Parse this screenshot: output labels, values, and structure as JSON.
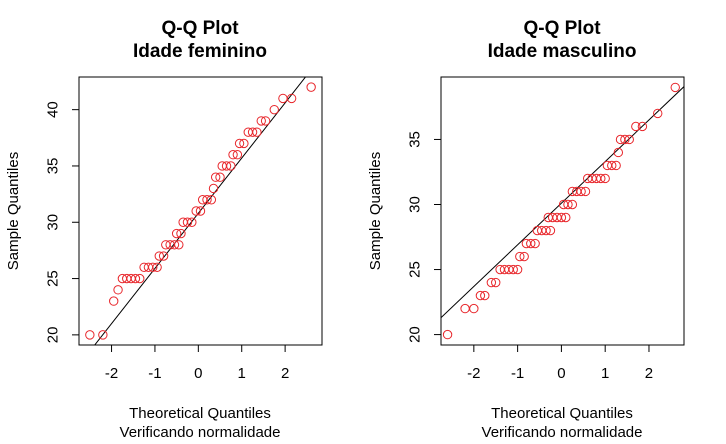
{
  "chart_data": [
    {
      "type": "scatter",
      "title": "Q-Q Plot",
      "subtitle": "Idade feminino",
      "xlabel": "Theoretical Quantiles",
      "xlabel2": "Verificando normalidade",
      "ylabel": "Sample Quantiles",
      "xlim": [
        -2.75,
        2.85
      ],
      "ylim": [
        19.1,
        42.9
      ],
      "xticks": [
        -2,
        -1,
        0,
        1,
        2
      ],
      "yticks": [
        20,
        25,
        30,
        35,
        40
      ],
      "xtick_labels": [
        "-2",
        "-1",
        "0",
        "1",
        "2"
      ],
      "ytick_labels": [
        "20",
        "25",
        "30",
        "35",
        "40"
      ],
      "point_color": "#e8262b",
      "line_color": "#000000",
      "reference_line": {
        "intercept": 30.8,
        "slope": 4.9
      },
      "series": [
        {
          "points": [
            [
              -2.5,
              20
            ],
            [
              -2.2,
              20
            ],
            [
              -1.95,
              23
            ],
            [
              -1.85,
              24
            ],
            [
              -1.75,
              25
            ],
            [
              -1.65,
              25
            ],
            [
              -1.55,
              25
            ],
            [
              -1.45,
              25
            ],
            [
              -1.35,
              25
            ],
            [
              -1.25,
              26
            ],
            [
              -1.15,
              26
            ],
            [
              -1.05,
              26
            ],
            [
              -0.95,
              26
            ],
            [
              -0.9,
              27
            ],
            [
              -0.8,
              27
            ],
            [
              -0.75,
              28
            ],
            [
              -0.65,
              28
            ],
            [
              -0.55,
              28
            ],
            [
              -0.45,
              28
            ],
            [
              -0.5,
              29
            ],
            [
              -0.4,
              29
            ],
            [
              -0.35,
              30
            ],
            [
              -0.25,
              30
            ],
            [
              -0.15,
              30
            ],
            [
              -0.05,
              31
            ],
            [
              0.05,
              31
            ],
            [
              0.1,
              32
            ],
            [
              0.2,
              32
            ],
            [
              0.3,
              32
            ],
            [
              0.35,
              33
            ],
            [
              0.4,
              34
            ],
            [
              0.5,
              34
            ],
            [
              0.55,
              35
            ],
            [
              0.65,
              35
            ],
            [
              0.75,
              35
            ],
            [
              0.8,
              36
            ],
            [
              0.9,
              36
            ],
            [
              0.95,
              37
            ],
            [
              1.05,
              37
            ],
            [
              1.15,
              38
            ],
            [
              1.25,
              38
            ],
            [
              1.35,
              38
            ],
            [
              1.45,
              39
            ],
            [
              1.55,
              39
            ],
            [
              1.75,
              40
            ],
            [
              1.95,
              41
            ],
            [
              2.15,
              41
            ],
            [
              2.6,
              42
            ]
          ]
        }
      ]
    },
    {
      "type": "scatter",
      "title": "Q-Q Plot",
      "subtitle": "Idade masculino",
      "xlabel": "Theoretical Quantiles",
      "xlabel2": "Verificando normalidade",
      "ylabel": "Sample Quantiles",
      "xlim": [
        -2.75,
        2.8
      ],
      "ylim": [
        19.2,
        39.8
      ],
      "xticks": [
        -2,
        -1,
        0,
        1,
        2
      ],
      "yticks": [
        20,
        25,
        30,
        35
      ],
      "xtick_labels": [
        "-2",
        "-1",
        "0",
        "1",
        "2"
      ],
      "ytick_labels": [
        "20",
        "25",
        "30",
        "35"
      ],
      "point_color": "#e8262b",
      "line_color": "#000000",
      "reference_line": {
        "intercept": 30.1,
        "slope": 3.2
      },
      "series": [
        {
          "points": [
            [
              -2.6,
              20
            ],
            [
              -2.2,
              22
            ],
            [
              -2.0,
              22
            ],
            [
              -1.85,
              23
            ],
            [
              -1.75,
              23
            ],
            [
              -1.6,
              24
            ],
            [
              -1.5,
              24
            ],
            [
              -1.4,
              25
            ],
            [
              -1.3,
              25
            ],
            [
              -1.2,
              25
            ],
            [
              -1.1,
              25
            ],
            [
              -1.0,
              25
            ],
            [
              -0.95,
              26
            ],
            [
              -0.85,
              26
            ],
            [
              -0.8,
              27
            ],
            [
              -0.7,
              27
            ],
            [
              -0.6,
              27
            ],
            [
              -0.55,
              28
            ],
            [
              -0.45,
              28
            ],
            [
              -0.35,
              28
            ],
            [
              -0.25,
              28
            ],
            [
              -0.3,
              29
            ],
            [
              -0.2,
              29
            ],
            [
              -0.1,
              29
            ],
            [
              0.0,
              29
            ],
            [
              0.1,
              29
            ],
            [
              0.05,
              30
            ],
            [
              0.15,
              30
            ],
            [
              0.25,
              30
            ],
            [
              0.25,
              31
            ],
            [
              0.35,
              31
            ],
            [
              0.45,
              31
            ],
            [
              0.55,
              31
            ],
            [
              0.6,
              32
            ],
            [
              0.7,
              32
            ],
            [
              0.8,
              32
            ],
            [
              0.9,
              32
            ],
            [
              1.0,
              32
            ],
            [
              1.05,
              33
            ],
            [
              1.15,
              33
            ],
            [
              1.25,
              33
            ],
            [
              1.3,
              34
            ],
            [
              1.35,
              35
            ],
            [
              1.45,
              35
            ],
            [
              1.55,
              35
            ],
            [
              1.7,
              36
            ],
            [
              1.85,
              36
            ],
            [
              2.2,
              37
            ],
            [
              2.6,
              39
            ]
          ]
        }
      ]
    }
  ]
}
